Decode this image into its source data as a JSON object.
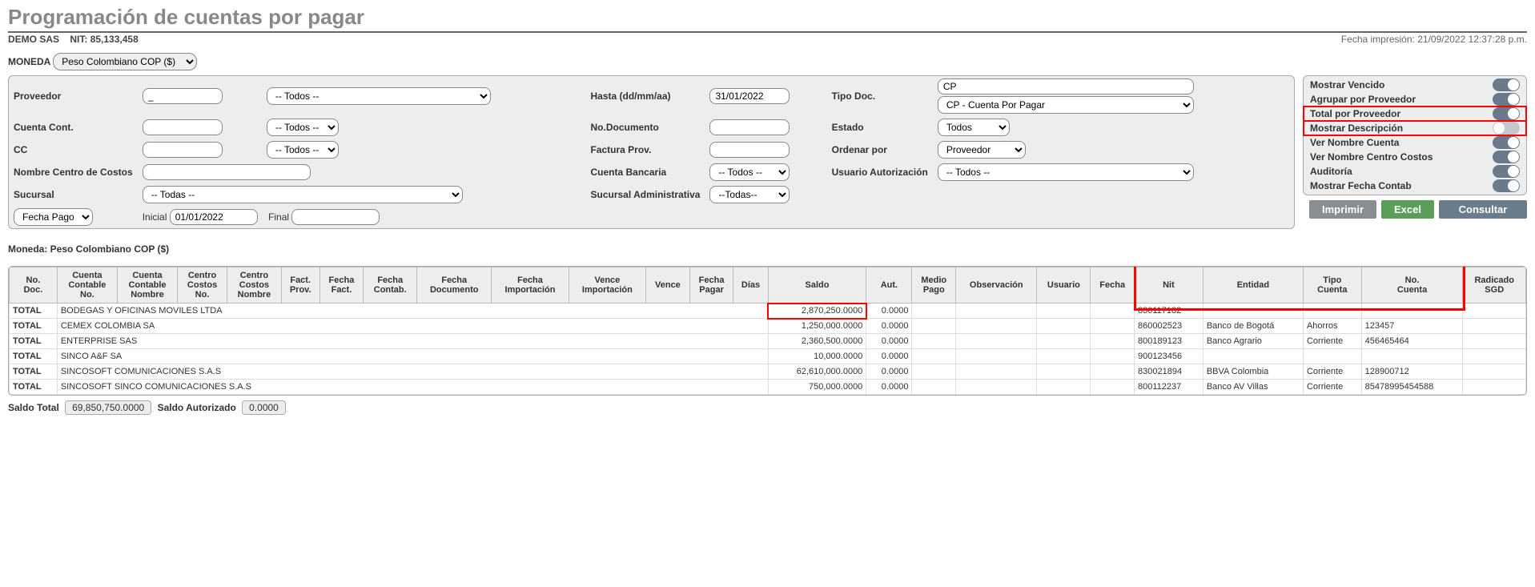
{
  "header": {
    "title": "Programación de cuentas por pagar",
    "company": "DEMO SAS",
    "nit_label": "NIT:",
    "nit": "85,133,458",
    "print_label": "Fecha impresión:",
    "print_ts": "21/09/2022 12:37:28 p.m."
  },
  "moneda_label": "MONEDA",
  "moneda_select": "Peso Colombiano COP ($)",
  "filters": {
    "proveedor_label": "Proveedor",
    "proveedor_code": "_",
    "proveedor_todos": "-- Todos --",
    "hasta_label": "Hasta (dd/mm/aa)",
    "hasta_value": "31/01/2022",
    "tipo_doc_label": "Tipo Doc.",
    "tipo_doc_code": "CP",
    "tipo_doc_sel": "CP - Cuenta Por Pagar",
    "cuenta_cont_label": "Cuenta Cont.",
    "cuenta_cont_todos": "-- Todos --",
    "no_doc_label": "No.Documento",
    "estado_label": "Estado",
    "estado_sel": "Todos",
    "cc_label": "CC",
    "cc_todos": "-- Todos --",
    "factura_prov_label": "Factura Prov.",
    "ordenar_label": "Ordenar por",
    "ordenar_sel": "Proveedor",
    "nombre_cc_label": "Nombre Centro de Costos",
    "cuenta_banc_label": "Cuenta Bancaria",
    "cuenta_banc_sel": "-- Todos --",
    "usuario_auth_label": "Usuario Autorización",
    "usuario_auth_sel": "-- Todos --",
    "sucursal_label": "Sucursal",
    "sucursal_sel": "-- Todas --",
    "sucursal_admin_label": "Sucursal Administrativa",
    "sucursal_admin_sel": "--Todas--",
    "fecha_type": "Fecha Pago",
    "inicial_lbl": "Inicial",
    "inicial_val": "01/01/2022",
    "final_lbl": "Final"
  },
  "toggles": [
    {
      "label": "Mostrar Vencido",
      "state": "on",
      "hl": false
    },
    {
      "label": "Agrupar por Proveedor",
      "state": "on",
      "hl": false
    },
    {
      "label": "Total por Proveedor",
      "state": "on",
      "hl": true
    },
    {
      "label": "Mostrar Descripción",
      "state": "off",
      "hl": true
    },
    {
      "label": "Ver Nombre Cuenta",
      "state": "on",
      "hl": false
    },
    {
      "label": "Ver Nombre Centro Costos",
      "state": "on",
      "hl": false
    },
    {
      "label": "Auditoría",
      "state": "on",
      "hl": false
    },
    {
      "label": "Mostrar Fecha Contab",
      "state": "on",
      "hl": false
    }
  ],
  "buttons": {
    "print": "Imprimir",
    "excel": "Excel",
    "query": "Consultar"
  },
  "moneda_display": "Moneda: Peso Colombiano COP ($)",
  "columns": [
    "No. Doc.",
    "Cuenta Contable No.",
    "Cuenta Contable Nombre",
    "Centro Costos No.",
    "Centro Costos Nombre",
    "Fact. Prov.",
    "Fecha Fact.",
    "Fecha Contab.",
    "Fecha Documento",
    "Fecha Importación",
    "Vence Importación",
    "Vence",
    "Fecha Pagar",
    "Días",
    "Saldo",
    "Aut.",
    "Medio Pago",
    "Observación",
    "Usuario",
    "Fecha",
    "Nit",
    "Entidad",
    "Tipo Cuenta",
    "No. Cuenta",
    "Radicado SGD"
  ],
  "rows": [
    {
      "total": "TOTAL",
      "name": "BODEGAS Y OFICINAS MOVILES LTDA",
      "saldo": "2,870,250.0000",
      "saldo_hl": true,
      "aut": "0.0000",
      "nit": "830117182",
      "entidad": "",
      "tipo": "",
      "cuenta": ""
    },
    {
      "total": "TOTAL",
      "name": "CEMEX COLOMBIA SA",
      "saldo": "1,250,000.0000",
      "saldo_hl": false,
      "aut": "0.0000",
      "nit": "860002523",
      "entidad": "Banco de Bogotá",
      "tipo": "Ahorros",
      "cuenta": "123457"
    },
    {
      "total": "TOTAL",
      "name": "ENTERPRISE SAS",
      "saldo": "2,360,500.0000",
      "saldo_hl": false,
      "aut": "0.0000",
      "nit": "800189123",
      "entidad": "Banco Agrario",
      "tipo": "Corriente",
      "cuenta": "456465464"
    },
    {
      "total": "TOTAL",
      "name": "SINCO A&F SA",
      "saldo": "10,000.0000",
      "saldo_hl": false,
      "aut": "0.0000",
      "nit": "900123456",
      "entidad": "",
      "tipo": "",
      "cuenta": ""
    },
    {
      "total": "TOTAL",
      "name": "SINCOSOFT COMUNICACIONES S.A.S",
      "saldo": "62,610,000.0000",
      "saldo_hl": false,
      "aut": "0.0000",
      "nit": "830021894",
      "entidad": "BBVA Colombia",
      "tipo": "Corriente",
      "cuenta": "128900712"
    },
    {
      "total": "TOTAL",
      "name": "SINCOSOFT SINCO COMUNICACIONES S.A.S",
      "saldo": "750,000.0000",
      "saldo_hl": false,
      "aut": "0.0000",
      "nit": "800112237",
      "entidad": "Banco AV Villas",
      "tipo": "Corriente",
      "cuenta": "85478995454588"
    }
  ],
  "totals": {
    "saldo_lbl": "Saldo Total",
    "saldo_val": "69,850,750.0000",
    "auth_lbl": "Saldo Autorizado",
    "auth_val": "0.0000"
  }
}
